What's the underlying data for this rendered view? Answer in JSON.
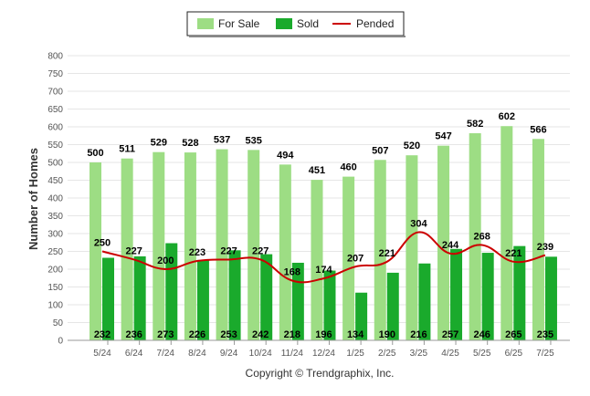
{
  "chart_data": {
    "type": "bar",
    "categories": [
      "5/24",
      "6/24",
      "7/24",
      "8/24",
      "9/24",
      "10/24",
      "11/24",
      "12/24",
      "1/25",
      "2/25",
      "3/25",
      "4/25",
      "5/25",
      "6/25",
      "7/25"
    ],
    "series": [
      {
        "name": "For Sale",
        "type": "bar",
        "color": "#9ddd84",
        "values": [
          500,
          511,
          529,
          528,
          537,
          535,
          494,
          451,
          460,
          507,
          520,
          547,
          582,
          602,
          566
        ]
      },
      {
        "name": "Sold",
        "type": "bar",
        "color": "#1aaa2c",
        "values": [
          232,
          236,
          273,
          226,
          253,
          242,
          218,
          196,
          134,
          190,
          216,
          257,
          246,
          265,
          235
        ]
      },
      {
        "name": "Pended",
        "type": "line",
        "color": "#cc0000",
        "values": [
          250,
          227,
          200,
          223,
          227,
          227,
          168,
          174,
          207,
          221,
          304,
          244,
          268,
          221,
          239
        ]
      }
    ],
    "ylabel": "Number of Homes",
    "xlabel": "",
    "ylim": [
      0,
      800
    ],
    "yticks": [
      0,
      50,
      100,
      150,
      200,
      250,
      300,
      350,
      400,
      450,
      500,
      550,
      600,
      650,
      700,
      750,
      800
    ],
    "grid": true,
    "legend_position": "top-center"
  },
  "copyright": "Copyright © Trendgraphix, Inc."
}
